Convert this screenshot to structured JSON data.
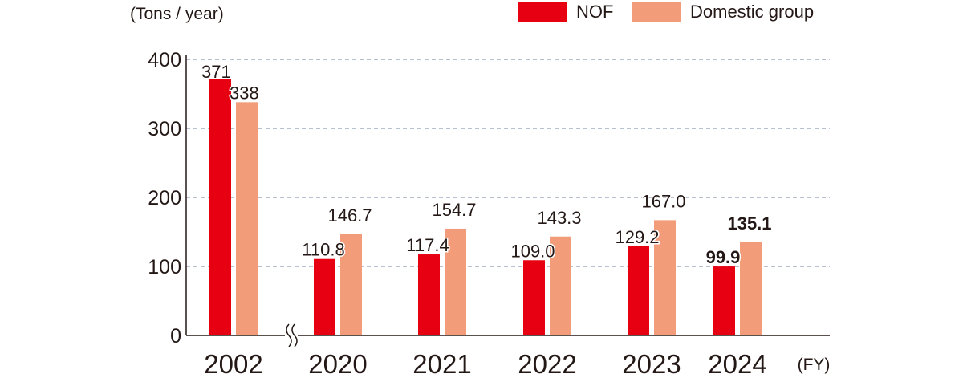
{
  "chart_data": {
    "type": "bar",
    "ylabel": "(Tons / year)",
    "xlabel": "(FY)",
    "ylim": [
      0,
      400
    ],
    "yticks": [
      0,
      100,
      200,
      300,
      400
    ],
    "categories": [
      "2002",
      "2020",
      "2021",
      "2022",
      "2023",
      "2024"
    ],
    "axis_break_after": "2002",
    "series": [
      {
        "name": "NOF",
        "color": "#e60012",
        "values": [
          371,
          110.8,
          117.4,
          109.0,
          129.2,
          99.9
        ],
        "labels": [
          "371",
          "110.8",
          "117.4",
          "109.0",
          "129.2",
          "99.9"
        ]
      },
      {
        "name": "Domestic group",
        "color": "#f39c79",
        "values": [
          338,
          146.7,
          154.7,
          143.3,
          167.0,
          135.1
        ],
        "labels": [
          "338",
          "146.7",
          "154.7",
          "143.3",
          "167.0",
          "135.1"
        ]
      }
    ],
    "bold_category": "2024",
    "grid": true,
    "legend_position": "top-right"
  }
}
